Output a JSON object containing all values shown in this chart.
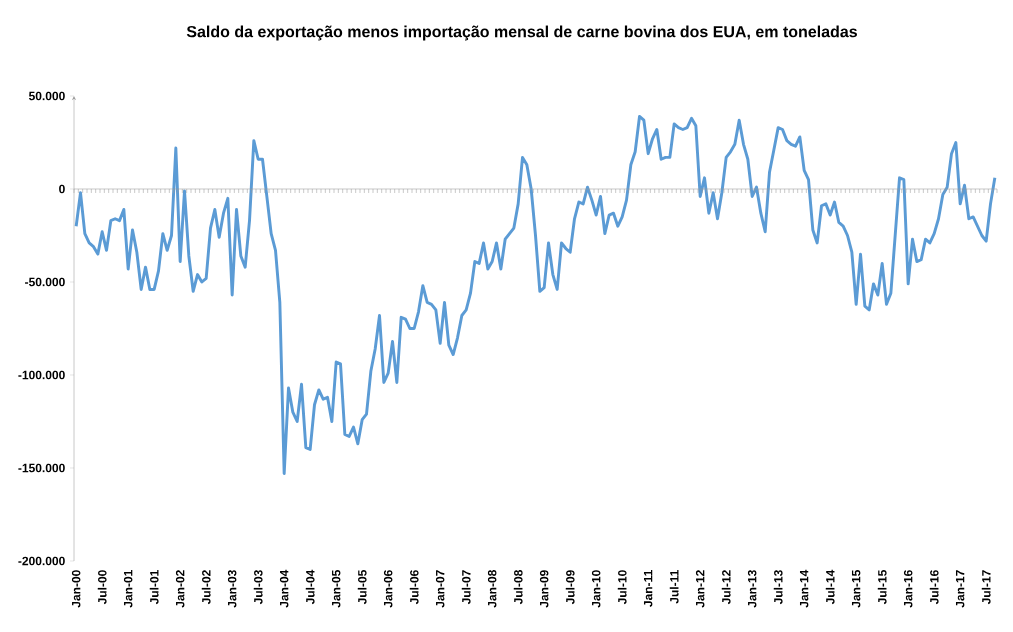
{
  "chart_data": {
    "type": "line",
    "title": "Saldo da exportação menos importação mensal de carne bovina dos EUA, em toneladas",
    "categories": [
      "Jan-00",
      null,
      null,
      null,
      null,
      null,
      "Jul-00",
      null,
      null,
      null,
      null,
      null,
      "Jan-01",
      null,
      null,
      null,
      null,
      null,
      "Jul-01",
      null,
      null,
      null,
      null,
      null,
      "Jan-02",
      null,
      null,
      null,
      null,
      null,
      "Jul-02",
      null,
      null,
      null,
      null,
      null,
      "Jan-03",
      null,
      null,
      null,
      null,
      null,
      "Jul-03",
      null,
      null,
      null,
      null,
      null,
      "Jan-04",
      null,
      null,
      null,
      null,
      null,
      "Jul-04",
      null,
      null,
      null,
      null,
      null,
      "Jan-05",
      null,
      null,
      null,
      null,
      null,
      "Jul-05",
      null,
      null,
      null,
      null,
      null,
      "Jan-06",
      null,
      null,
      null,
      null,
      null,
      "Jul-06",
      null,
      null,
      null,
      null,
      null,
      "Jan-07",
      null,
      null,
      null,
      null,
      null,
      "Jul-07",
      null,
      null,
      null,
      null,
      null,
      "Jan-08",
      null,
      null,
      null,
      null,
      null,
      "Jul-08",
      null,
      null,
      null,
      null,
      null,
      "Jan-09",
      null,
      null,
      null,
      null,
      null,
      "Jul-09",
      null,
      null,
      null,
      null,
      null,
      "Jan-10",
      null,
      null,
      null,
      null,
      null,
      "Jul-10",
      null,
      null,
      null,
      null,
      null,
      "Jan-11",
      null,
      null,
      null,
      null,
      null,
      "Jul-11",
      null,
      null,
      null,
      null,
      null,
      "Jan-12",
      null,
      null,
      null,
      null,
      null,
      "Jul-12",
      null,
      null,
      null,
      null,
      null,
      "Jan-13",
      null,
      null,
      null,
      null,
      null,
      "Jul-13",
      null,
      null,
      null,
      null,
      null,
      "Jan-14",
      null,
      null,
      null,
      null,
      null,
      "Jul-14",
      null,
      null,
      null,
      null,
      null,
      "Jan-15",
      null,
      null,
      null,
      null,
      null,
      "Jul-15",
      null,
      null,
      null,
      null,
      null,
      "Jan-16",
      null,
      null,
      null,
      null,
      null,
      "Jul-16",
      null,
      null,
      null,
      null,
      null,
      "Jan-17",
      null,
      null,
      null,
      null,
      null,
      "Jul-17",
      null,
      null
    ],
    "values": [
      -20000,
      -2000,
      -24000,
      -29000,
      -31000,
      -35000,
      -23000,
      -33000,
      -17000,
      -16000,
      -17000,
      -11000,
      -43000,
      -22000,
      -34000,
      -54000,
      -42000,
      -54000,
      -54000,
      -44000,
      -24000,
      -33000,
      -25000,
      22000,
      -39000,
      -1000,
      -36000,
      -55000,
      -46000,
      -50000,
      -48000,
      -21000,
      -11000,
      -26000,
      -13000,
      -5000,
      -57000,
      -11000,
      -36000,
      -42000,
      -17000,
      26000,
      16000,
      16000,
      -4000,
      -24000,
      -33000,
      -61000,
      -153000,
      -107000,
      -120000,
      -125000,
      -105000,
      -139000,
      -140000,
      -116000,
      -108000,
      -113000,
      -112000,
      -125000,
      -93000,
      -94000,
      -132000,
      -133000,
      -128000,
      -137000,
      -124000,
      -121000,
      -98000,
      -86000,
      -68000,
      -104000,
      -99000,
      -82000,
      -104000,
      -69000,
      -70000,
      -75000,
      -75000,
      -66000,
      -52000,
      -61000,
      -62000,
      -65000,
      -83000,
      -61000,
      -84000,
      -89000,
      -80000,
      -68000,
      -65000,
      -56000,
      -39000,
      -40000,
      -29000,
      -43000,
      -39000,
      -29000,
      -43000,
      -27000,
      -24000,
      -21000,
      -8000,
      17000,
      13000,
      0,
      -25000,
      -55000,
      -53000,
      -29000,
      -46000,
      -54000,
      -29000,
      -32000,
      -34000,
      -16000,
      -7000,
      -8000,
      1000,
      -6000,
      -14000,
      -4000,
      -24000,
      -14000,
      -13000,
      -20000,
      -15000,
      -6000,
      13000,
      20000,
      39000,
      37000,
      19000,
      27000,
      32000,
      16000,
      17000,
      17000,
      35000,
      33000,
      32000,
      33000,
      38000,
      34000,
      -4000,
      6000,
      -13000,
      -2000,
      -16000,
      -2000,
      17000,
      20000,
      24000,
      37000,
      24000,
      16000,
      -4000,
      1000,
      -13000,
      -23000,
      9000,
      21000,
      33000,
      32000,
      26000,
      24000,
      23000,
      28000,
      10000,
      5000,
      -22000,
      -29000,
      -9000,
      -8000,
      -14000,
      -7000,
      -18000,
      -20000,
      -25000,
      -34000,
      -62000,
      -35000,
      -63000,
      -65000,
      -51000,
      -57000,
      -40000,
      -62000,
      -56000,
      -25000,
      6000,
      5000,
      -51000,
      -27000,
      -39000,
      -38000,
      -27000,
      -29000,
      -24000,
      -16000,
      -3000,
      1000,
      19000,
      25000,
      -8000,
      2000,
      -16000,
      -15000,
      -20000,
      -25000,
      -28000,
      -8000,
      6000
    ],
    "color": "#5b9bd5",
    "ylim": [
      -200000,
      50000
    ],
    "yticks": [
      {
        "value": -200000,
        "label": "-200.000"
      },
      {
        "value": -150000,
        "label": "-150.000"
      },
      {
        "value": -100000,
        "label": "-100.000"
      },
      {
        "value": -50000,
        "label": "-50.000"
      },
      0,
      {
        "value": 50000,
        "label": "50.000"
      }
    ]
  }
}
